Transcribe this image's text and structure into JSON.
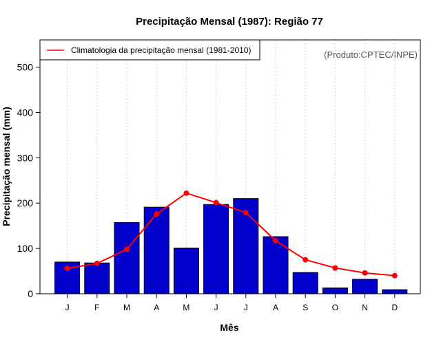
{
  "chart_data": {
    "type": "bar",
    "title": "Precipitação Mensal (1987): Região 77",
    "xlabel": "Mês",
    "ylabel": "Precipitação mensal (mm)",
    "ylim": [
      0,
      560
    ],
    "yticks": [
      0,
      100,
      200,
      300,
      400,
      500
    ],
    "categories": [
      "J",
      "F",
      "M",
      "A",
      "M",
      "J",
      "J",
      "A",
      "S",
      "O",
      "N",
      "D"
    ],
    "series": [
      {
        "name": "Precipitação mensal 1987",
        "kind": "bar",
        "color": "#0000cd",
        "values": [
          70,
          68,
          157,
          191,
          101,
          197,
          210,
          126,
          47,
          13,
          32,
          9
        ]
      },
      {
        "name": "Climatologia da precipitação mensal (1981-2010)",
        "kind": "line",
        "color": "#ff0000",
        "values": [
          56,
          67,
          98,
          176,
          222,
          201,
          179,
          117,
          75,
          57,
          46,
          40
        ]
      }
    ],
    "legend": {
      "position": "top-left",
      "entries": [
        "Climatologia da precipitação mensal (1981-2010)"
      ]
    },
    "grid": "vertical dotted",
    "credit": "(Produto:CPTEC/INPE)"
  }
}
